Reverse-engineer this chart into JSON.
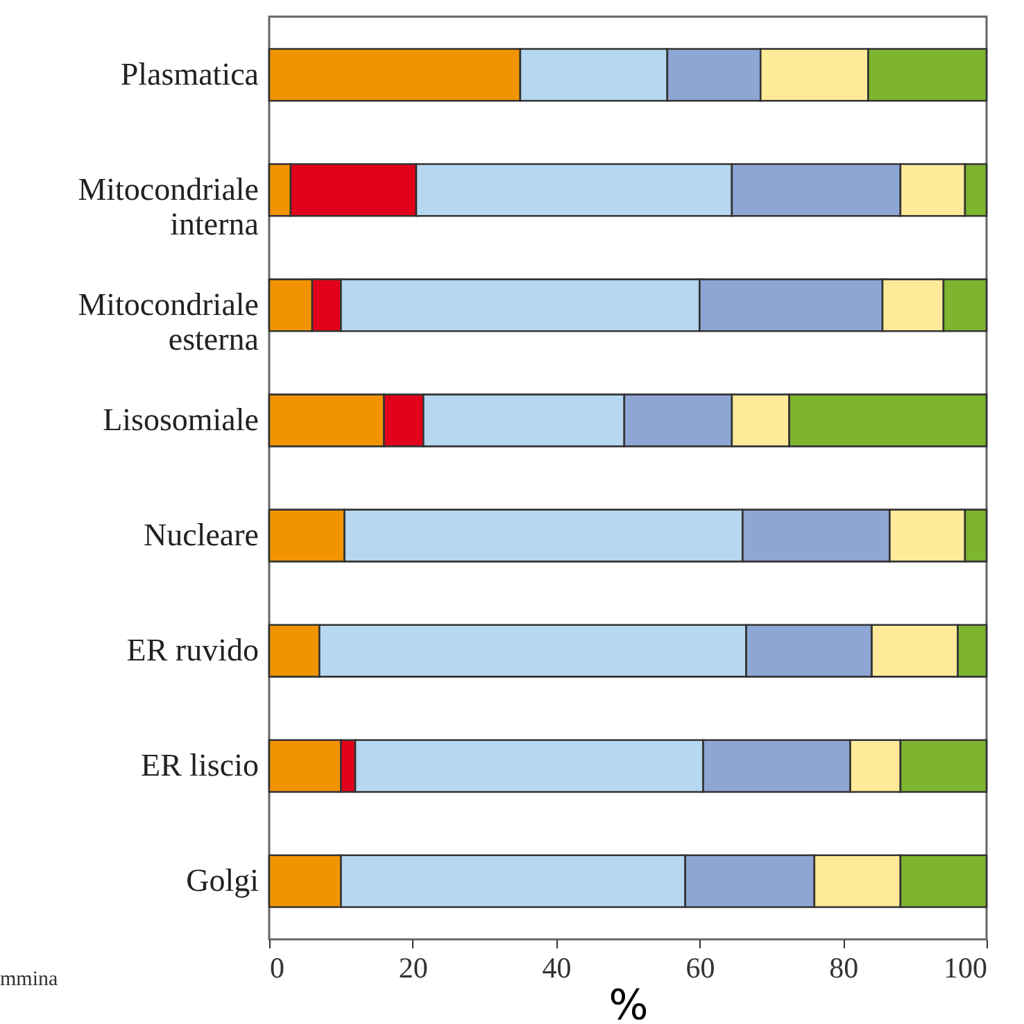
{
  "chart_data": {
    "type": "bar",
    "orientation": "horizontal",
    "stacked": true,
    "xlabel": "%",
    "categories": [
      "Plasmatica",
      "Mitocondriale\ninterna",
      "Mitocondriale\nesterna",
      "Lisosomiale",
      "Nucleare",
      "ER ruvido",
      "ER liscio",
      "Golgi"
    ],
    "series": [
      {
        "color": "#f29400",
        "values": [
          35,
          3,
          6,
          16,
          10.5,
          7,
          10,
          10
        ]
      },
      {
        "color": "#e2001a",
        "values": [
          null,
          17.5,
          4,
          5.5,
          null,
          null,
          2,
          null
        ]
      },
      {
        "color": "#b5d7ef",
        "values": [
          20.5,
          44,
          50,
          28,
          55.5,
          59.5,
          48.5,
          48
        ]
      },
      {
        "color": "#8da6d3",
        "values": [
          13,
          23.5,
          25.5,
          15,
          20.5,
          17.5,
          20.5,
          18
        ]
      },
      {
        "color": "#ffea99",
        "values": [
          15,
          9,
          8.5,
          8,
          10.5,
          12,
          7,
          12
        ]
      },
      {
        "color": "#7db52f",
        "values": [
          16.5,
          3,
          6,
          27.5,
          3,
          4,
          12,
          12
        ]
      }
    ],
    "xlim": [
      0,
      100
    ],
    "xticks": [
      0,
      20,
      40,
      60,
      80,
      100
    ],
    "grid": false,
    "annotations": [
      "mmina"
    ]
  }
}
